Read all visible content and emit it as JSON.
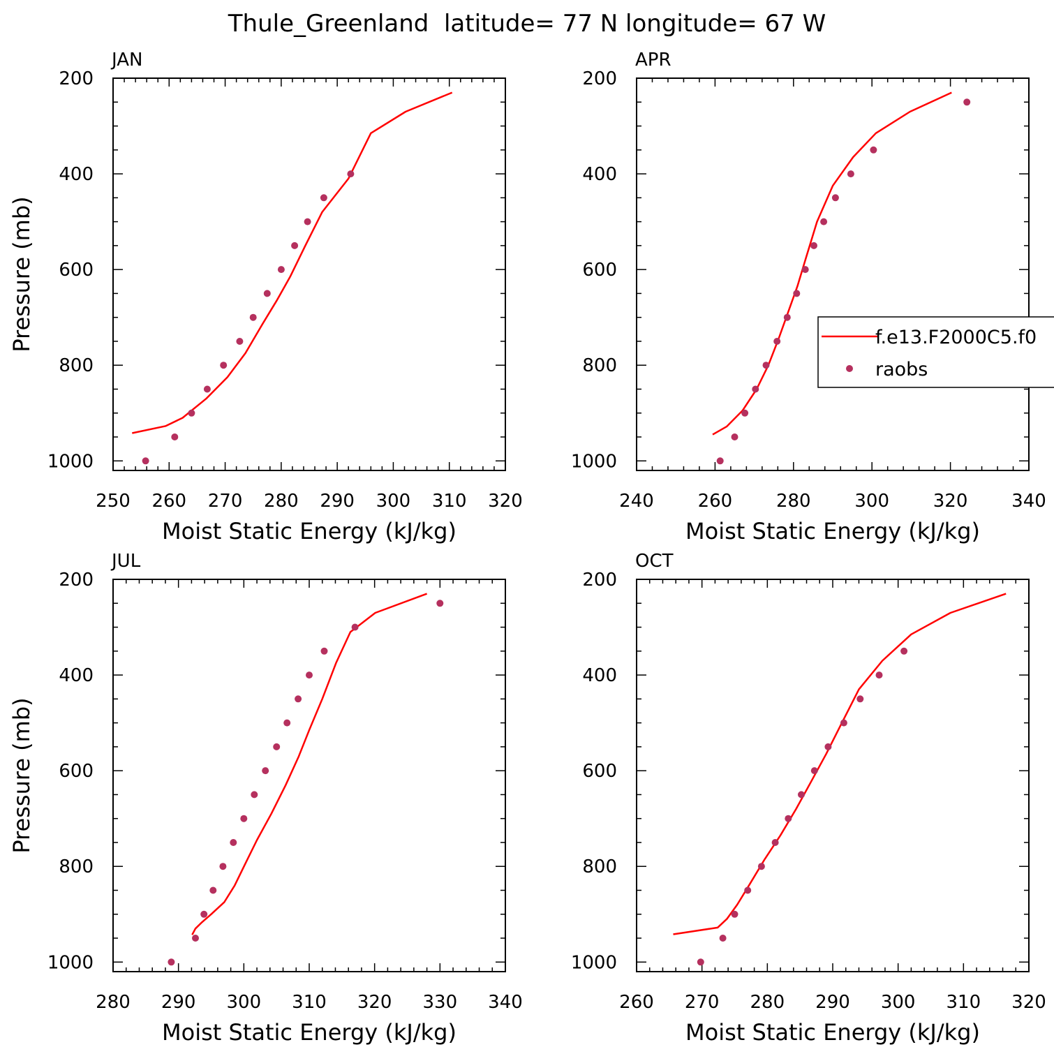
{
  "title": "Thule_Greenland  latitude= 77 N longitude= 67 W",
  "colors": {
    "model_line": "#ff0000",
    "obs_marker": "#b5305e",
    "axis": "#000000"
  },
  "legend": {
    "entries": [
      {
        "label": "f.e13.F2000C5.f0",
        "style": "line"
      },
      {
        "label": "raobs",
        "style": "marker"
      }
    ]
  },
  "chart_data": [
    {
      "type": "line",
      "panel_label": "JAN",
      "xlabel": "Moist Static Energy (kJ/kg)",
      "ylabel": "Pressure (mb)",
      "xlim": [
        250,
        320
      ],
      "ylim": [
        1020,
        200
      ],
      "xticks": [
        250,
        260,
        270,
        280,
        290,
        300,
        310,
        320
      ],
      "yticks": [
        200,
        400,
        600,
        800,
        1000
      ],
      "series": [
        {
          "name": "f.e13.F2000C5.f0",
          "kind": "line",
          "x": [
            253.4,
            259.4,
            262.4,
            266.6,
            270.4,
            273.6,
            276.6,
            279.2,
            281.6,
            284.3,
            287.3,
            292.0,
            296.0,
            302.2,
            310.5
          ],
          "y": [
            942,
            927,
            910,
            870,
            825,
            775,
            715,
            665,
            615,
            550,
            480,
            410,
            315,
            270,
            230
          ]
        },
        {
          "name": "raobs",
          "kind": "scatter",
          "x": [
            255.8,
            261.0,
            264.0,
            266.8,
            269.7,
            272.6,
            275.0,
            277.5,
            280.0,
            282.4,
            284.7,
            287.6,
            292.4
          ],
          "y": [
            1000,
            950,
            900,
            850,
            800,
            750,
            700,
            650,
            600,
            550,
            500,
            450,
            400
          ]
        }
      ]
    },
    {
      "type": "line",
      "panel_label": "APR",
      "xlabel": "Moist Static Energy (kJ/kg)",
      "ylabel": "",
      "xlim": [
        240,
        340
      ],
      "ylim": [
        1020,
        200
      ],
      "xticks": [
        240,
        260,
        280,
        300,
        320,
        340
      ],
      "yticks": [
        200,
        400,
        600,
        800,
        1000
      ],
      "series": [
        {
          "name": "f.e13.F2000C5.f0",
          "kind": "line",
          "x": [
            259.4,
            263.0,
            267.0,
            270.6,
            273.6,
            276.2,
            278.6,
            281.0,
            283.2,
            286.0,
            290.0,
            295.2,
            301.0,
            309.7,
            320.3
          ],
          "y": [
            945,
            928,
            895,
            850,
            800,
            745,
            690,
            635,
            575,
            500,
            425,
            365,
            315,
            270,
            230
          ]
        },
        {
          "name": "raobs",
          "kind": "scatter",
          "x": [
            261.3,
            265.0,
            267.6,
            270.3,
            273.0,
            275.8,
            278.4,
            280.8,
            283.0,
            285.2,
            287.7,
            290.7,
            294.6,
            300.4,
            324.2
          ],
          "y": [
            1000,
            950,
            900,
            850,
            800,
            750,
            700,
            650,
            600,
            550,
            500,
            450,
            400,
            350,
            250
          ]
        }
      ]
    },
    {
      "type": "line",
      "panel_label": "JUL",
      "xlabel": "Moist Static Energy (kJ/kg)",
      "ylabel": "Pressure (mb)",
      "xlim": [
        280,
        340
      ],
      "ylim": [
        1020,
        200
      ],
      "xticks": [
        280,
        290,
        300,
        310,
        320,
        330,
        340
      ],
      "yticks": [
        200,
        400,
        600,
        800,
        1000
      ],
      "series": [
        {
          "name": "f.e13.F2000C5.f0",
          "kind": "line",
          "x": [
            292.1,
            292.6,
            293.5,
            295.0,
            297.0,
            298.6,
            300.2,
            302.0,
            304.2,
            306.4,
            308.4,
            310.0,
            312.0,
            314.1,
            316.3,
            320.1,
            328.0
          ],
          "y": [
            943,
            930,
            918,
            900,
            875,
            840,
            795,
            745,
            690,
            630,
            570,
            515,
            450,
            375,
            310,
            270,
            230
          ]
        },
        {
          "name": "raobs",
          "kind": "scatter",
          "x": [
            288.9,
            292.6,
            293.9,
            295.3,
            296.8,
            298.4,
            300.0,
            301.6,
            303.3,
            305.0,
            306.6,
            308.3,
            310.0,
            312.3,
            317.0,
            330.0
          ],
          "y": [
            1000,
            950,
            900,
            850,
            800,
            750,
            700,
            650,
            600,
            550,
            500,
            450,
            400,
            350,
            300,
            250
          ]
        }
      ]
    },
    {
      "type": "line",
      "panel_label": "OCT",
      "xlabel": "Moist Static Energy (kJ/kg)",
      "ylabel": "",
      "xlim": [
        260,
        320
      ],
      "ylim": [
        1020,
        200
      ],
      "xticks": [
        260,
        270,
        280,
        290,
        300,
        310,
        320
      ],
      "yticks": [
        200,
        400,
        600,
        800,
        1000
      ],
      "series": [
        {
          "name": "f.e13.F2000C5.f0",
          "kind": "line",
          "x": [
            265.6,
            272.4,
            273.8,
            275.4,
            277.4,
            279.6,
            282.0,
            284.4,
            286.6,
            289.0,
            291.4,
            294.0,
            297.6,
            302.0,
            308.0,
            316.5
          ],
          "y": [
            942,
            928,
            910,
            880,
            835,
            785,
            735,
            680,
            625,
            565,
            500,
            430,
            370,
            315,
            270,
            230
          ]
        },
        {
          "name": "raobs",
          "kind": "scatter",
          "x": [
            269.8,
            273.2,
            275.0,
            277.0,
            279.1,
            281.2,
            283.2,
            285.2,
            287.2,
            289.3,
            291.7,
            294.2,
            297.1,
            300.9
          ],
          "y": [
            1000,
            950,
            900,
            850,
            800,
            750,
            700,
            650,
            600,
            550,
            500,
            450,
            400,
            350
          ]
        }
      ]
    }
  ]
}
